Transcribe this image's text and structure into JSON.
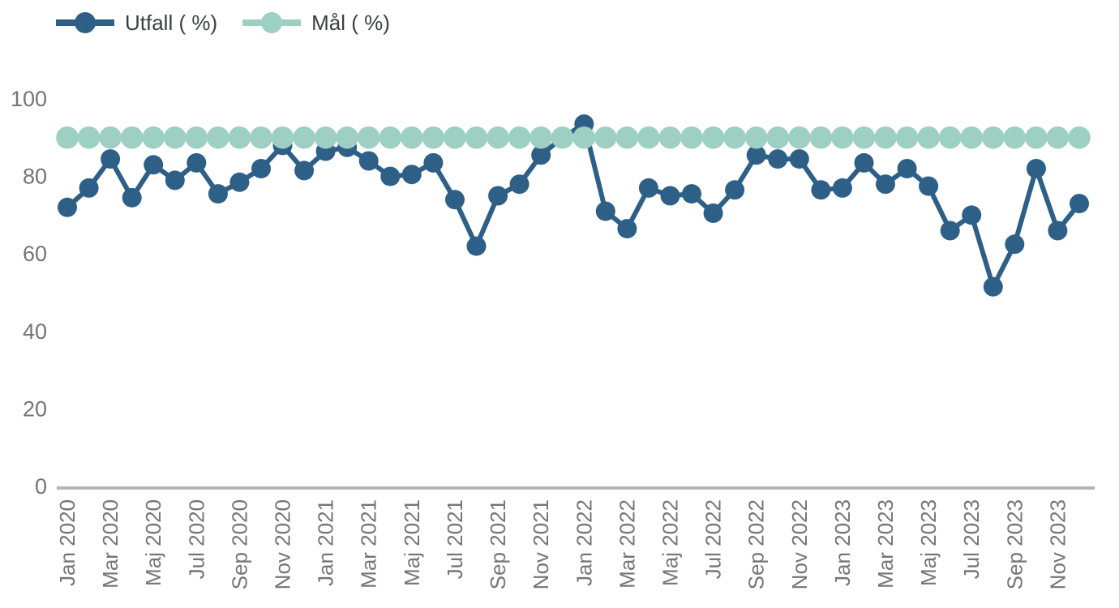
{
  "chart_data": {
    "type": "line",
    "title": "",
    "xlabel": "",
    "ylabel": "",
    "ylim": [
      0,
      100
    ],
    "yticks": [
      0,
      20,
      40,
      60,
      80,
      100
    ],
    "grid": false,
    "legend_position": "top-left",
    "xtick_every": 2,
    "x": [
      "Jan 2020",
      "Feb 2020",
      "Mar 2020",
      "Apr 2020",
      "Maj 2020",
      "Jun 2020",
      "Jul 2020",
      "Aug 2020",
      "Sep 2020",
      "Okt 2020",
      "Nov 2020",
      "Dec 2020",
      "Jan 2021",
      "Feb 2021",
      "Mar 2021",
      "Apr 2021",
      "Maj 2021",
      "Jun 2021",
      "Jul 2021",
      "Aug 2021",
      "Sep 2021",
      "Okt 2021",
      "Nov 2021",
      "Dec 2021",
      "Jan 2022",
      "Feb 2022",
      "Mar 2022",
      "Apr 2022",
      "Maj 2022",
      "Jun 2022",
      "Jul 2022",
      "Aug 2022",
      "Sep 2022",
      "Okt 2022",
      "Nov 2022",
      "Dec 2022",
      "Jan 2023",
      "Feb 2023",
      "Mar 2023",
      "Apr 2023",
      "Maj 2023",
      "Jun 2023",
      "Jul 2023",
      "Aug 2023",
      "Sep 2023",
      "Okt 2023",
      "Nov 2023",
      "Dec 2023"
    ],
    "series": [
      {
        "name": "Utfall ( %)",
        "color": "#2d5f87",
        "values": [
          72,
          77,
          84.5,
          74.5,
          83,
          79,
          83.5,
          75.5,
          78.5,
          82,
          88,
          81.5,
          86.5,
          87.5,
          84,
          80,
          80.5,
          83.5,
          74,
          62,
          75,
          78,
          85.5,
          90,
          93.5,
          71,
          66.5,
          77,
          75,
          75.5,
          70.5,
          76.5,
          85.5,
          84.5,
          84.5,
          76.5,
          77,
          83.5,
          78,
          82,
          77.5,
          66,
          70,
          51.5,
          62.5,
          82,
          66,
          73
        ]
      },
      {
        "name": "Mål ( %)",
        "color": "#9dcfc2",
        "values": [
          90,
          90,
          90,
          90,
          90,
          90,
          90,
          90,
          90,
          90,
          90,
          90,
          90,
          90,
          90,
          90,
          90,
          90,
          90,
          90,
          90,
          90,
          90,
          90,
          90,
          90,
          90,
          90,
          90,
          90,
          90,
          90,
          90,
          90,
          90,
          90,
          90,
          90,
          90,
          90,
          90,
          90,
          90,
          90,
          90,
          90,
          90,
          90
        ]
      }
    ],
    "axis_color": "#b5b5b5",
    "tick_label_color": "#757575"
  }
}
